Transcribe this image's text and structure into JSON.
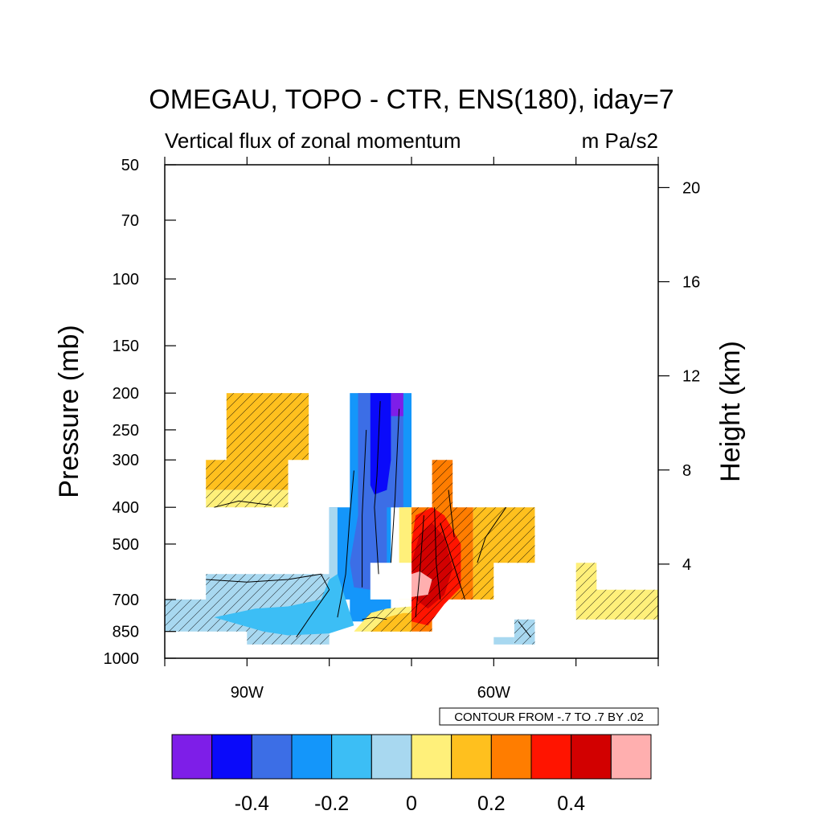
{
  "chart_data": {
    "type": "heatmap",
    "title": "OMEGAU, TOPO - CTR, ENS(180), iday=7",
    "subtitle_left": "Vertical flux of zonal momentum",
    "subtitle_right": "m Pa/s2",
    "ylabel_left": "Pressure (mb)",
    "ylabel_right": "Height (km)",
    "x_axis": {
      "range_deg": [
        -100,
        -40
      ],
      "tick_labels": [
        {
          "value": -90,
          "label": "90W"
        },
        {
          "value": -60,
          "label": "60W"
        }
      ],
      "minor_ticks": [
        -100,
        -80,
        -70,
        -50,
        -40
      ]
    },
    "y_axis_left": {
      "scale": "log",
      "range": [
        1000,
        50
      ],
      "ticks": [
        {
          "value": 50,
          "label": "50"
        },
        {
          "value": 70,
          "label": "70"
        },
        {
          "value": 100,
          "label": "100"
        },
        {
          "value": 150,
          "label": "150"
        },
        {
          "value": 200,
          "label": "200"
        },
        {
          "value": 250,
          "label": "250"
        },
        {
          "value": 300,
          "label": "300"
        },
        {
          "value": 400,
          "label": "400"
        },
        {
          "value": 500,
          "label": "500"
        },
        {
          "value": 700,
          "label": "700"
        },
        {
          "value": 850,
          "label": "850"
        },
        {
          "value": 1000,
          "label": "1000"
        }
      ]
    },
    "y_axis_right": {
      "ticks": [
        {
          "value": 20,
          "label": "20"
        },
        {
          "value": 16,
          "label": "16"
        },
        {
          "value": 12,
          "label": "12"
        },
        {
          "value": 8,
          "label": "8"
        },
        {
          "value": 4,
          "label": "4"
        }
      ]
    },
    "contour_info": "CONTOUR FROM -.7 TO .7 BY .02",
    "colorbar": {
      "colors": [
        "#7e1ee8",
        "#0a0afa",
        "#3c6ee6",
        "#1496fa",
        "#3cbef5",
        "#a8d8f0",
        "#fff07a",
        "#ffc01e",
        "#ff7d00",
        "#ff1400",
        "#d20000",
        "#ffafaf"
      ],
      "labels": [
        {
          "after_box": 1,
          "label": "-0.4"
        },
        {
          "after_box": 3,
          "label": "-0.2"
        },
        {
          "after_box": 5,
          "label": "0"
        },
        {
          "after_box": 7,
          "label": "0.2"
        },
        {
          "after_box": 9,
          "label": "0.4"
        }
      ]
    },
    "regions": [
      {
        "name": "upper-orange-block",
        "value": 0.15,
        "color": "#ffc01e",
        "hatch": true,
        "poly": [
          [
            -92.5,
            200
          ],
          [
            -92.5,
            300
          ],
          [
            -95,
            300
          ],
          [
            -95,
            360
          ],
          [
            -85,
            360
          ],
          [
            -85,
            300
          ],
          [
            -82.5,
            300
          ],
          [
            -82.5,
            200
          ]
        ]
      },
      {
        "name": "upper-yellow-strip",
        "value": 0.05,
        "color": "#fff07a",
        "hatch": true,
        "poly": [
          [
            -95,
            360
          ],
          [
            -95,
            400
          ],
          [
            -85,
            400
          ],
          [
            -85,
            360
          ]
        ]
      },
      {
        "name": "blue-column-outer",
        "value": -0.2,
        "color": "#1496fa",
        "hatch": false,
        "poly": [
          [
            -77.5,
            200
          ],
          [
            -77.5,
            400
          ],
          [
            -80,
            400
          ],
          [
            -80,
            700
          ],
          [
            -77.5,
            700
          ],
          [
            -77.5,
            800
          ],
          [
            -72.5,
            800
          ],
          [
            -72.5,
            400
          ],
          [
            -70,
            400
          ],
          [
            -70,
            200
          ]
        ]
      },
      {
        "name": "blue-column-mid",
        "value": -0.28,
        "color": "#3c6ee6",
        "hatch": false,
        "poly": [
          [
            -76.5,
            200
          ],
          [
            -76.5,
            420
          ],
          [
            -77.5,
            560
          ],
          [
            -77,
            650
          ],
          [
            -75,
            660
          ],
          [
            -73,
            600
          ],
          [
            -73,
            400
          ],
          [
            -71,
            400
          ],
          [
            -71,
            200
          ]
        ]
      },
      {
        "name": "blue-column-core",
        "value": -0.4,
        "color": "#0a0afa",
        "hatch": false,
        "poly": [
          [
            -75,
            200
          ],
          [
            -75,
            350
          ],
          [
            -74.5,
            370
          ],
          [
            -73,
            360
          ],
          [
            -72.5,
            300
          ],
          [
            -72.5,
            200
          ]
        ]
      },
      {
        "name": "purple-top-cell",
        "value": -0.5,
        "color": "#7e1ee8",
        "hatch": false,
        "poly": [
          [
            -72.5,
            200
          ],
          [
            -72.5,
            230
          ],
          [
            -71,
            230
          ],
          [
            -71,
            200
          ]
        ]
      },
      {
        "name": "light-blue-column-edge",
        "value": -0.05,
        "color": "#a8d8f0",
        "hatch": false,
        "poly": [
          [
            -80,
            400
          ],
          [
            -80,
            700
          ],
          [
            -79,
            700
          ],
          [
            -79,
            400
          ]
        ]
      },
      {
        "name": "lower-left-light-blue",
        "value": -0.05,
        "color": "#a8d8f0",
        "hatch": true,
        "poly": [
          [
            -100,
            700
          ],
          [
            -100,
            850
          ],
          [
            -90,
            850
          ],
          [
            -90,
            920
          ],
          [
            -80,
            920
          ],
          [
            -80,
            700
          ],
          [
            -80,
            600
          ],
          [
            -95,
            600
          ],
          [
            -95,
            700
          ]
        ]
      },
      {
        "name": "lower-left-blue-tongue",
        "value": -0.15,
        "color": "#3cbef5",
        "hatch": false,
        "poly": [
          [
            -94,
            780
          ],
          [
            -89,
            740
          ],
          [
            -85,
            730
          ],
          [
            -81,
            700
          ],
          [
            -80,
            620
          ],
          [
            -79,
            600
          ],
          [
            -78,
            700
          ],
          [
            -77,
            820
          ],
          [
            -80,
            860
          ],
          [
            -85,
            870
          ],
          [
            -88,
            850
          ]
        ]
      },
      {
        "name": "surface-yellow",
        "value": 0.05,
        "color": "#fff07a",
        "hatch": true,
        "poly": [
          [
            -77,
            850
          ],
          [
            -75,
            760
          ],
          [
            -73,
            740
          ],
          [
            -70,
            730
          ],
          [
            -70,
            850
          ]
        ]
      },
      {
        "name": "surface-orange",
        "value": 0.15,
        "color": "#ffc01e",
        "hatch": true,
        "poly": [
          [
            -75,
            850
          ],
          [
            -73,
            780
          ],
          [
            -71,
            760
          ],
          [
            -70,
            760
          ],
          [
            -70,
            850
          ]
        ]
      },
      {
        "name": "red-mass-orange-base",
        "value": 0.25,
        "color": "#ff7d00",
        "hatch": true,
        "poly": [
          [
            -67.5,
            300
          ],
          [
            -67.5,
            400
          ],
          [
            -70,
            400
          ],
          [
            -70,
            850
          ],
          [
            -67.5,
            850
          ],
          [
            -67.5,
            700
          ],
          [
            -62.5,
            700
          ],
          [
            -62.5,
            400
          ],
          [
            -65,
            400
          ],
          [
            -65,
            300
          ]
        ]
      },
      {
        "name": "red-mass-yellow-edge",
        "value": 0.05,
        "color": "#fff07a",
        "hatch": false,
        "poly": [
          [
            -71.5,
            400
          ],
          [
            -71.5,
            700
          ],
          [
            -70,
            700
          ],
          [
            -70,
            400
          ]
        ]
      },
      {
        "name": "red-mass-red",
        "value": 0.35,
        "color": "#ff1400",
        "hatch": true,
        "poly": [
          [
            -69.5,
            420
          ],
          [
            -70,
            500
          ],
          [
            -70,
            800
          ],
          [
            -68,
            820
          ],
          [
            -66,
            720
          ],
          [
            -64,
            650
          ],
          [
            -64,
            500
          ],
          [
            -66,
            420
          ],
          [
            -67.5,
            400
          ]
        ]
      },
      {
        "name": "red-mass-dark-red",
        "value": 0.45,
        "color": "#d20000",
        "hatch": true,
        "poly": [
          [
            -69,
            470
          ],
          [
            -70,
            560
          ],
          [
            -69.5,
            700
          ],
          [
            -68,
            740
          ],
          [
            -66,
            680
          ],
          [
            -65,
            580
          ],
          [
            -66,
            480
          ],
          [
            -67.5,
            440
          ]
        ]
      },
      {
        "name": "red-mass-pink",
        "value": 0.55,
        "color": "#ffafaf",
        "hatch": false,
        "poly": [
          [
            -70,
            600
          ],
          [
            -70,
            690
          ],
          [
            -68,
            680
          ],
          [
            -67.5,
            620
          ],
          [
            -69,
            590
          ]
        ]
      },
      {
        "name": "red-mass-white-hole",
        "value": 0,
        "color": "#ffffff",
        "hatch": false,
        "poly": [
          [
            -75,
            560
          ],
          [
            -75,
            700
          ],
          [
            -70,
            700
          ],
          [
            -70,
            560
          ]
        ]
      },
      {
        "name": "mid-right-orange",
        "value": 0.15,
        "color": "#ffc01e",
        "hatch": true,
        "poly": [
          [
            -62.5,
            400
          ],
          [
            -62.5,
            700
          ],
          [
            -60,
            700
          ],
          [
            -60,
            560
          ],
          [
            -55,
            560
          ],
          [
            -55,
            400
          ]
        ]
      },
      {
        "name": "far-right-yellow",
        "value": 0.05,
        "color": "#fff07a",
        "hatch": true,
        "poly": [
          [
            -50,
            560
          ],
          [
            -50,
            790
          ],
          [
            -40,
            790
          ],
          [
            -40,
            660
          ],
          [
            -47.5,
            660
          ],
          [
            -47.5,
            560
          ]
        ]
      },
      {
        "name": "lower-right-light-blue-a",
        "value": -0.05,
        "color": "#a8d8f0",
        "hatch": true,
        "poly": [
          [
            -57.5,
            790
          ],
          [
            -57.5,
            920
          ],
          [
            -55,
            920
          ],
          [
            -55,
            790
          ]
        ]
      },
      {
        "name": "lower-right-light-blue-b",
        "value": -0.05,
        "color": "#a8d8f0",
        "hatch": false,
        "poly": [
          [
            -60,
            880
          ],
          [
            -60,
            920
          ],
          [
            -57.5,
            920
          ],
          [
            -57.5,
            880
          ]
        ]
      }
    ],
    "contour_lines": [
      [
        [
          -95,
          620
        ],
        [
          -90,
          630
        ],
        [
          -85,
          620
        ],
        [
          -81,
          600
        ],
        [
          -80,
          660
        ],
        [
          -82,
          760
        ],
        [
          -84,
          880
        ]
      ],
      [
        [
          -94,
          400
        ],
        [
          -91,
          385
        ],
        [
          -87,
          395
        ]
      ],
      [
        [
          -77,
          320
        ],
        [
          -77.5,
          420
        ],
        [
          -78,
          600
        ],
        [
          -79,
          780
        ]
      ],
      [
        [
          -75.5,
          250
        ],
        [
          -76,
          420
        ],
        [
          -76,
          650
        ]
      ],
      [
        [
          -73.8,
          210
        ],
        [
          -74.2,
          330
        ],
        [
          -74.5,
          400
        ],
        [
          -74,
          600
        ]
      ],
      [
        [
          -71.5,
          220
        ],
        [
          -72,
          380
        ],
        [
          -72.5,
          560
        ]
      ],
      [
        [
          -68.5,
          420
        ],
        [
          -69,
          600
        ],
        [
          -69.5,
          780
        ]
      ],
      [
        [
          -67.2,
          400
        ],
        [
          -67,
          560
        ],
        [
          -66.5,
          700
        ]
      ],
      [
        [
          -66.5,
          440
        ],
        [
          -64.5,
          600
        ],
        [
          -63.5,
          700
        ]
      ],
      [
        [
          -65.5,
          360
        ],
        [
          -64.8,
          480
        ]
      ],
      [
        [
          -62,
          560
        ],
        [
          -61,
          480
        ],
        [
          -58.5,
          400
        ]
      ],
      [
        [
          -57,
          800
        ],
        [
          -55.5,
          880
        ]
      ],
      [
        [
          -76,
          790
        ],
        [
          -74.5,
          780
        ],
        [
          -73,
          790
        ]
      ]
    ]
  }
}
